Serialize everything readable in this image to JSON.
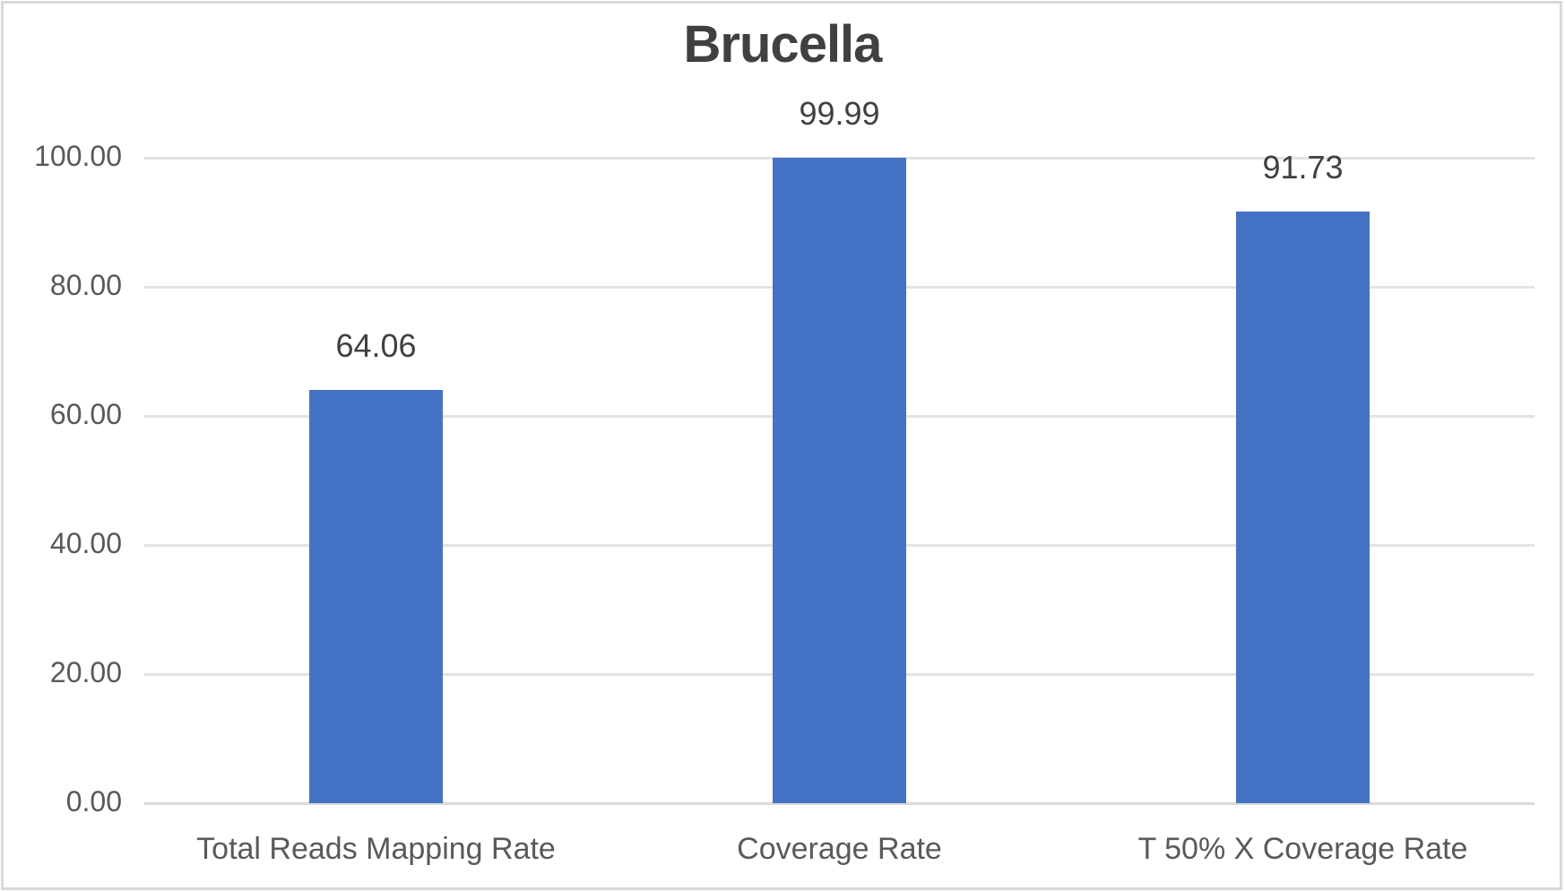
{
  "chart_data": {
    "type": "bar",
    "title": "Brucella",
    "categories": [
      "Total Reads Mapping Rate",
      "Coverage Rate",
      "T 50% X Coverage Rate"
    ],
    "values": [
      64.06,
      99.99,
      91.73
    ],
    "value_labels": [
      "64.06",
      "99.99",
      "91.73"
    ],
    "xlabel": "",
    "ylabel": "",
    "ylim": [
      0,
      100
    ],
    "yticks": [
      "0.00",
      "20.00",
      "40.00",
      "60.00",
      "80.00",
      "100.00"
    ],
    "grid": true,
    "legend": "none",
    "bar_color": "#4472c4"
  }
}
